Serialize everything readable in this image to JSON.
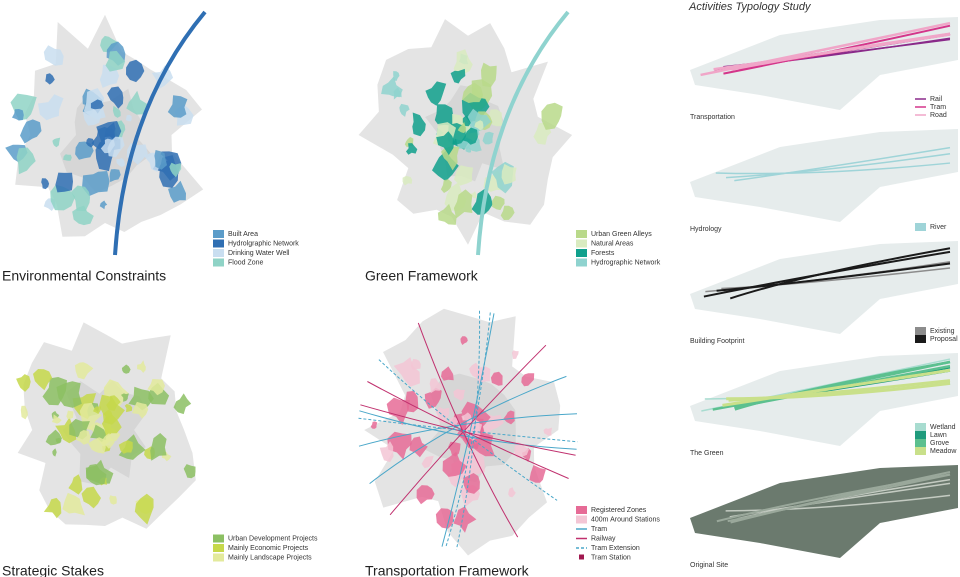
{
  "panels": [
    {
      "title": "Environmental Constraints",
      "legend": [
        {
          "label": "Built Area",
          "color": "#5b9cc9"
        },
        {
          "label": "Hydrolgraphic Network",
          "color": "#2f6fb3"
        },
        {
          "label": "Drinking Water Well",
          "color": "#c9def0"
        },
        {
          "label": "Flood Zone",
          "color": "#8fd3c6"
        }
      ]
    },
    {
      "title": "Green Framework",
      "legend": [
        {
          "label": "Urban Green Alleys",
          "color": "#b9d98a"
        },
        {
          "label": "Natural Areas",
          "color": "#d9ebc0"
        },
        {
          "label": "Forests",
          "color": "#0fa08c"
        },
        {
          "label": "Hydrographic Network",
          "color": "#8fd3cf"
        }
      ]
    },
    {
      "title": "Strategic Stakes",
      "legend": [
        {
          "label": "Urban Development Projects",
          "color": "#8cc063"
        },
        {
          "label": "Mainly Economic Projects",
          "color": "#c6d84a"
        },
        {
          "label": "Mainly Landscape Projects",
          "color": "#e3ea9c"
        }
      ]
    },
    {
      "title": "Transportation Framework",
      "legend": [
        {
          "label": "Registered Zones",
          "color": "#e66b96"
        },
        {
          "label": "400m Around Stations",
          "color": "#f3c6d5"
        },
        {
          "label": "Tram",
          "color": "#4aa7c9",
          "shape": "line"
        },
        {
          "label": "Railway",
          "color": "#c0306e",
          "shape": "line"
        },
        {
          "label": "Tram Extension",
          "color": "#4aa7c9",
          "shape": "dash"
        },
        {
          "label": "Tram Station",
          "color": "#a0184f",
          "shape": "dot"
        }
      ]
    }
  ],
  "study": {
    "title": "Activities Typology Study",
    "strips": [
      {
        "label": "Transportation",
        "legend": [
          {
            "label": "Rail",
            "color": "#8a2a8a",
            "shape": "line"
          },
          {
            "label": "Tram",
            "color": "#d4358a",
            "shape": "line"
          },
          {
            "label": "Road",
            "color": "#f0a6c8",
            "shape": "line"
          }
        ]
      },
      {
        "label": "Hydrology",
        "legend": [
          {
            "label": "River",
            "color": "#9fd4d8"
          }
        ]
      },
      {
        "label": "Building Footprint",
        "legend": [
          {
            "label": "Existing",
            "color": "#8c8c8c"
          },
          {
            "label": "Proposal",
            "color": "#1a1a1a"
          }
        ]
      },
      {
        "label": "The Green",
        "legend": [
          {
            "label": "Wetland",
            "color": "#a8dcd0"
          },
          {
            "label": "Lawn",
            "color": "#1f9b7c"
          },
          {
            "label": "Grove",
            "color": "#5cc08f"
          },
          {
            "label": "Meadow",
            "color": "#c9e08a"
          }
        ]
      },
      {
        "label": "Original Site"
      }
    ]
  }
}
